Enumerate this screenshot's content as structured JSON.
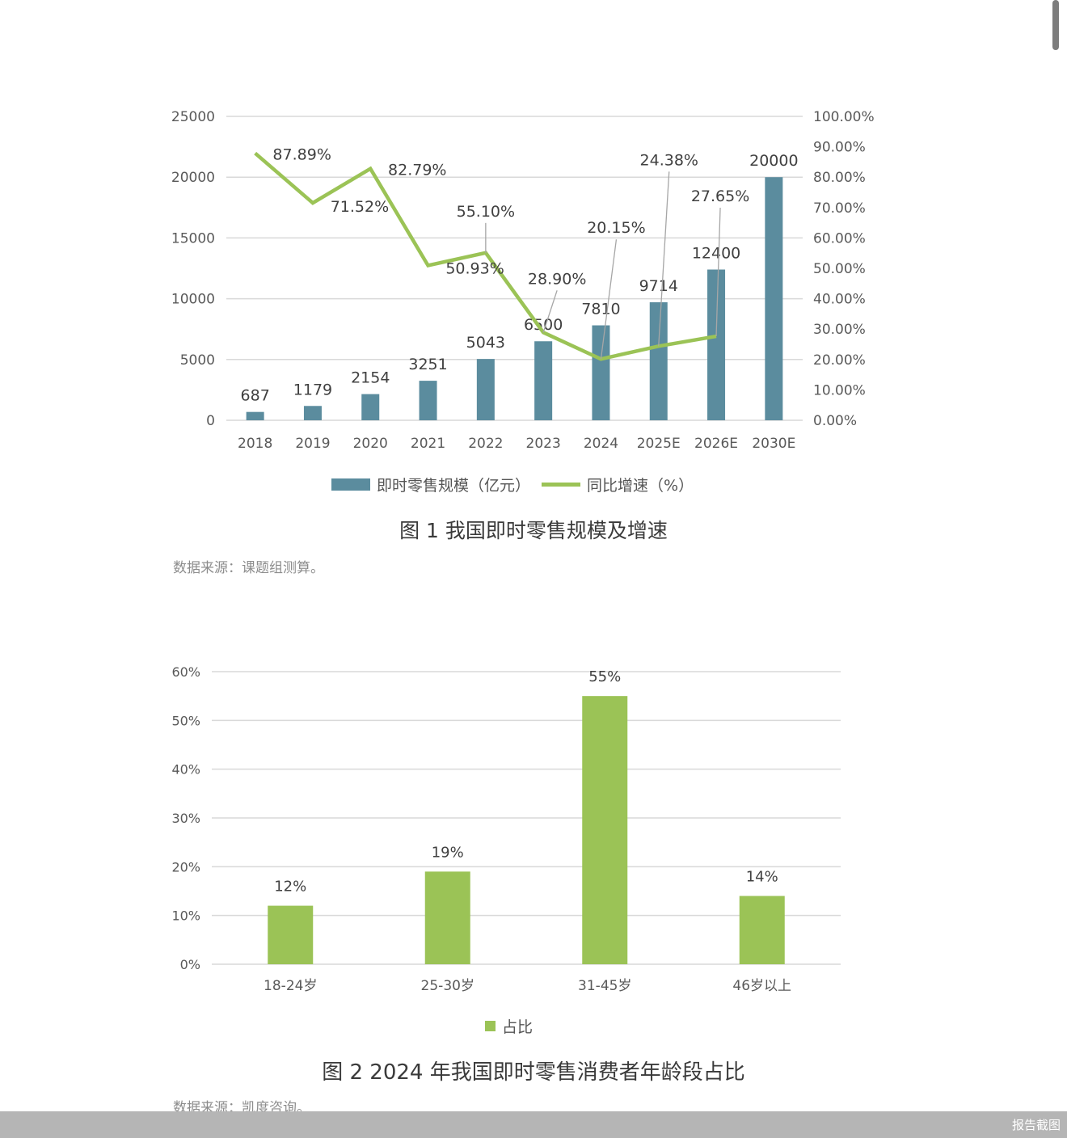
{
  "figure1": {
    "caption": "图 1  我国即时零售规模及增速",
    "source": "数据来源：课题组测算。",
    "legend": {
      "bar_label": "即时零售规模（亿元）",
      "line_label": "同比增速（%）"
    }
  },
  "figure2": {
    "caption": "图 2  2024 年我国即时零售消费者年龄段占比",
    "source": "数据来源：凯度咨询。",
    "legend": {
      "bar_label": "占比"
    }
  },
  "footer": {
    "label": "报告截图"
  },
  "colors": {
    "bar1": "#5b8c9e",
    "line1": "#9bc356",
    "bar2": "#9bc356",
    "grid": "#d9d9d9",
    "text": "#404040"
  },
  "chart_data": [
    {
      "type": "bar+line",
      "title": "图 1 我国即时零售规模及增速",
      "categories": [
        "2018",
        "2019",
        "2020",
        "2021",
        "2022",
        "2023",
        "2024",
        "2025E",
        "2026E",
        "2030E"
      ],
      "series": [
        {
          "name": "即时零售规模（亿元）",
          "type": "bar",
          "axis": "left",
          "values": [
            687,
            1179,
            2154,
            3251,
            5043,
            6500,
            7810,
            9714,
            12400,
            20000
          ]
        },
        {
          "name": "同比增速（%）",
          "type": "line",
          "axis": "right",
          "values": [
            87.89,
            71.52,
            82.79,
            50.93,
            55.1,
            28.9,
            20.15,
            24.38,
            27.65,
            null
          ],
          "labels": [
            "87.89%",
            "71.52%",
            "82.79%",
            "50.93%",
            "55.10%",
            "28.90%",
            "20.15%",
            "24.38%",
            "27.65%",
            ""
          ]
        }
      ],
      "left_axis": {
        "ylim": [
          0,
          25000
        ],
        "ticks": [
          "0",
          "5000",
          "10000",
          "15000",
          "20000",
          "25000"
        ]
      },
      "right_axis": {
        "ylim": [
          0,
          100
        ],
        "ticks": [
          "0.00%",
          "10.00%",
          "20.00%",
          "30.00%",
          "40.00%",
          "50.00%",
          "60.00%",
          "70.00%",
          "80.00%",
          "90.00%",
          "100.00%"
        ]
      },
      "grid": true,
      "legend_position": "bottom"
    },
    {
      "type": "bar",
      "title": "图 2 2024 年我国即时零售消费者年龄段占比",
      "categories": [
        "18-24岁",
        "25-30岁",
        "31-45岁",
        "46岁以上"
      ],
      "values": [
        12,
        19,
        55,
        14
      ],
      "labels": [
        "12%",
        "19%",
        "55%",
        "14%"
      ],
      "ylim": [
        0,
        60
      ],
      "ticks": [
        "0%",
        "10%",
        "20%",
        "30%",
        "40%",
        "50%",
        "60%"
      ],
      "series_name": "占比",
      "grid": true,
      "legend_position": "bottom"
    }
  ]
}
